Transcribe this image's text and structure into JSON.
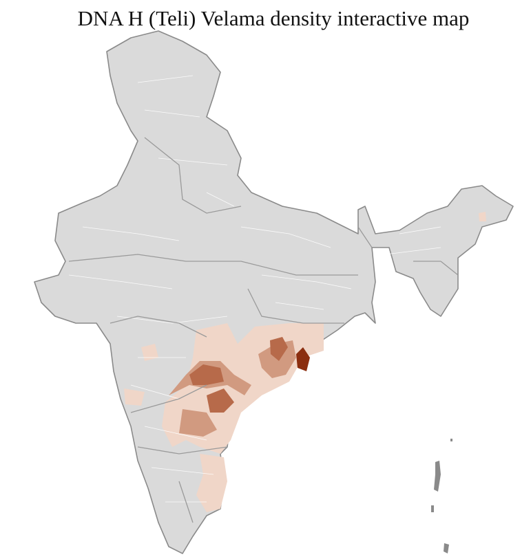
{
  "title": "DNA H (Teli) Velama density interactive map"
}
